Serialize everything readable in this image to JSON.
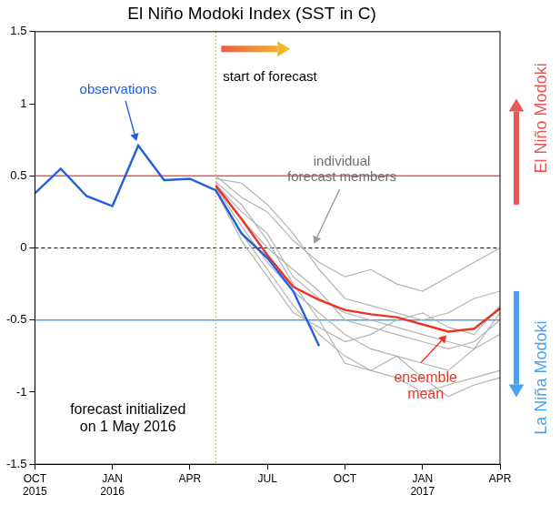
{
  "chart_data": {
    "type": "line",
    "title": "El Niño Modoki Index (SST in C)",
    "categories": [
      "OCT 2015",
      null,
      null,
      "JAN 2016",
      null,
      null,
      "APR",
      null,
      null,
      "JUL",
      null,
      null,
      "OCT",
      null,
      null,
      "JAN 2017",
      null,
      null,
      "APR"
    ],
    "series": [
      {
        "color": "#1f5fe0",
        "values": [
          0.38,
          0.55,
          0.36,
          0.29,
          0.71,
          0.47,
          0.48,
          0.4,
          0.1,
          -0.07,
          -0.3,
          -0.68,
          null,
          null,
          null,
          null,
          null,
          null,
          null
        ]
      },
      {
        "color": "#b4b4b4",
        "values": [
          null,
          null,
          null,
          null,
          null,
          null,
          null,
          0.5,
          0.35,
          0.25,
          0.05,
          -0.1,
          -0.2,
          -0.15,
          -0.25,
          -0.3,
          -0.2,
          -0.1,
          0.0
        ]
      },
      {
        "color": "#b4b4b4",
        "values": [
          null,
          null,
          null,
          null,
          null,
          null,
          null,
          0.48,
          0.45,
          0.3,
          0.1,
          -0.15,
          -0.35,
          -0.4,
          -0.45,
          -0.5,
          -0.45,
          -0.35,
          -0.3
        ]
      },
      {
        "color": "#b4b4b4",
        "values": [
          null,
          null,
          null,
          null,
          null,
          null,
          null,
          0.45,
          0.2,
          0.0,
          -0.15,
          -0.3,
          -0.5,
          -0.55,
          -0.6,
          -0.65,
          -0.7,
          -0.65,
          -0.5
        ]
      },
      {
        "color": "#b4b4b4",
        "values": [
          null,
          null,
          null,
          null,
          null,
          null,
          null,
          0.42,
          0.15,
          -0.1,
          -0.3,
          -0.45,
          -0.6,
          -0.7,
          -0.75,
          -0.8,
          -0.85,
          -0.7,
          -0.6
        ]
      },
      {
        "color": "#b4b4b4",
        "values": [
          null,
          null,
          null,
          null,
          null,
          null,
          null,
          0.4,
          0.1,
          -0.15,
          -0.4,
          -0.6,
          -0.75,
          -0.85,
          -0.9,
          -1.0,
          -0.95,
          -0.9,
          -0.85
        ]
      },
      {
        "color": "#b4b4b4",
        "values": [
          null,
          null,
          null,
          null,
          null,
          null,
          null,
          0.44,
          0.25,
          0.1,
          -0.2,
          -0.35,
          -0.45,
          -0.5,
          -0.55,
          -0.6,
          -0.65,
          -0.7,
          -0.45
        ]
      },
      {
        "color": "#b4b4b4",
        "values": [
          null,
          null,
          null,
          null,
          null,
          null,
          null,
          0.4,
          0.05,
          -0.2,
          -0.45,
          -0.55,
          -0.65,
          -0.6,
          -0.5,
          -0.45,
          -0.55,
          -0.6,
          -0.4
        ]
      },
      {
        "color": "#b4b4b4",
        "values": [
          null,
          null,
          null,
          null,
          null,
          null,
          null,
          0.46,
          0.3,
          0.05,
          -0.25,
          -0.5,
          -0.8,
          -0.85,
          -0.75,
          -0.9,
          -1.03,
          -0.95,
          -0.9
        ]
      },
      {
        "color": "#ee3322",
        "values": [
          null,
          null,
          null,
          null,
          null,
          null,
          null,
          0.43,
          0.2,
          -0.05,
          -0.27,
          -0.36,
          -0.43,
          -0.46,
          -0.48,
          -0.53,
          -0.58,
          -0.56,
          -0.42
        ]
      }
    ],
    "marker": "none",
    "ylim": [
      -1.5,
      1.5
    ],
    "yticks": [
      -1.5,
      -1,
      -0.5,
      0,
      0.5,
      1,
      1.5
    ],
    "grid": false,
    "reference_lines": [
      {
        "value": 0.5,
        "color": "#e8585a",
        "line_style": "solid"
      },
      {
        "value": 0,
        "color": "#000000",
        "line_style": "dashed"
      },
      {
        "value": -0.5,
        "color": "#4aa3ee",
        "line_style": "solid"
      }
    ],
    "annotations": {
      "forecast_start": "start of forecast",
      "observations": "observations",
      "members": "individual\nforecast members",
      "ensemble": "ensemble\nmean",
      "initialized": "forecast initialized\non 1 May 2016",
      "upper": "El Niño Modoki",
      "lower": "La Niña Modoki"
    }
  }
}
